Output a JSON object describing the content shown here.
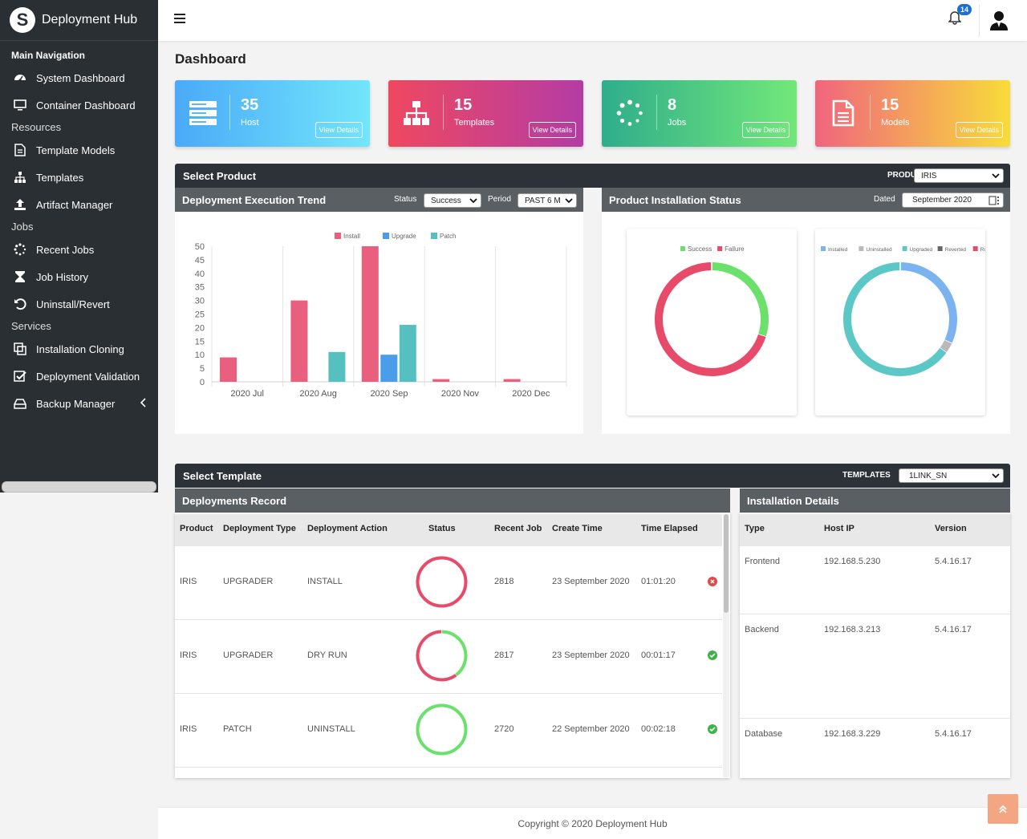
{
  "brand": {
    "title": "Deployment Hub"
  },
  "sidebar": {
    "main_label": "Main Navigation",
    "items_main": [
      {
        "label": "System Dashboard",
        "icon": "tachometer-icon"
      },
      {
        "label": "Container Dashboard",
        "icon": "monitor-icon"
      }
    ],
    "resources_label": "Resources",
    "items_resources": [
      {
        "label": "Template Models",
        "icon": "document-icon"
      },
      {
        "label": "Templates",
        "icon": "sitemap-icon"
      },
      {
        "label": "Artifact Manager",
        "icon": "upload-icon"
      }
    ],
    "jobs_label": "Jobs",
    "items_jobs": [
      {
        "label": "Recent Jobs",
        "icon": "spinner-icon"
      },
      {
        "label": "Job History",
        "icon": "hourglass-icon"
      },
      {
        "label": "Uninstall/Revert",
        "icon": "undo-icon"
      }
    ],
    "services_label": "Services",
    "items_services": [
      {
        "label": "Installation Cloning",
        "icon": "clone-icon"
      },
      {
        "label": "Deployment Validation",
        "icon": "check-square-icon"
      },
      {
        "label": "Backup Manager",
        "icon": "hdd-icon"
      }
    ]
  },
  "topbar": {
    "notification_count": "14"
  },
  "page": {
    "title": "Dashboard"
  },
  "cards": [
    {
      "value": "35",
      "label": "Host",
      "button": "View Details",
      "icon": "server-icon"
    },
    {
      "value": "15",
      "label": "Templates",
      "button": "View Details",
      "icon": "sitemap-icon"
    },
    {
      "value": "8",
      "label": "Jobs",
      "button": "View Details",
      "icon": "spinner-icon"
    },
    {
      "value": "15",
      "label": "Models",
      "button": "View Details",
      "icon": "document-icon"
    }
  ],
  "product_panel": {
    "title": "Select Product",
    "product_label": "PRODUCT",
    "product_value": "IRIS",
    "trend": {
      "title": "Deployment Execution Trend",
      "status_label": "Status",
      "status_value": "Success",
      "period_label": "Period",
      "period_value": "PAST 6 M"
    },
    "install_status": {
      "title": "Product Installation Status",
      "dated_label": "Dated",
      "dated_value": "September 2020"
    }
  },
  "chart_data": [
    {
      "type": "bar",
      "categories": [
        "2020 Jul",
        "2020 Aug",
        "2020 Sep",
        "2020 Nov",
        "2020 Dec"
      ],
      "series": [
        {
          "name": "Install",
          "color": "#e9607e",
          "values": [
            9,
            30,
            50,
            1,
            1
          ]
        },
        {
          "name": "Upgrade",
          "color": "#4a9de8",
          "values": [
            0,
            0,
            10,
            0,
            0
          ]
        },
        {
          "name": "Patch",
          "color": "#56c0c0",
          "values": [
            0,
            11,
            21,
            0,
            0
          ]
        }
      ],
      "yticks": [
        "0",
        "5",
        "10",
        "15",
        "20",
        "25",
        "30",
        "35",
        "40",
        "45",
        "50"
      ],
      "ylim": [
        0,
        50
      ],
      "legend": "top"
    },
    {
      "type": "pie",
      "labels": [
        "Success",
        "Failure"
      ],
      "values": [
        30,
        70
      ],
      "colors": [
        "#6be06b",
        "#e84a6a"
      ]
    },
    {
      "type": "pie",
      "labels": [
        "Installed",
        "Uninstalled",
        "Upgraded",
        "Reverted",
        "Rollback"
      ],
      "values": [
        32,
        3,
        65,
        0,
        0
      ],
      "colors": [
        "#7ab3ef",
        "#b9b9b9",
        "#5cc7c7",
        "#666666",
        "#e84a6a"
      ]
    }
  ],
  "template_panel": {
    "title": "Select Template",
    "templates_label": "TEMPLATES",
    "templates_value": "1LINK_SN"
  },
  "records": {
    "title": "Deployments Record",
    "columns": [
      "Product",
      "Deployment Type",
      "Deployment Action",
      "Status",
      "Recent Job",
      "Create Time",
      "Time Elapsed"
    ],
    "rows": [
      {
        "product": "IRIS",
        "type": "UPGRADER",
        "action": "INSTALL",
        "status_success": 0,
        "job": "2818",
        "created": "23 September 2020",
        "elapsed": "01:01:20",
        "result": "x-circle-icon"
      },
      {
        "product": "IRIS",
        "type": "UPGRADER",
        "action": "DRY RUN",
        "status_success": 0.4,
        "job": "2817",
        "created": "23 September 2020",
        "elapsed": "00:01:17",
        "result": "check-circle-icon"
      },
      {
        "product": "IRIS",
        "type": "PATCH",
        "action": "UNINSTALL",
        "status_success": 1,
        "job": "2720",
        "created": "22 September 2020",
        "elapsed": "00:02:18",
        "result": "check-circle-icon"
      }
    ]
  },
  "installation": {
    "title": "Installation Details",
    "columns": [
      "Type",
      "Host IP",
      "Version"
    ],
    "rows": [
      {
        "type": "Frontend",
        "ip": "192.168.5.230",
        "version": "5.4.16.17"
      },
      {
        "type": "Backend",
        "ip": "192.168.3.213",
        "version": "5.4.16.17"
      },
      {
        "type": "Database",
        "ip": "192.168.3.229",
        "version": "5.4.16.17"
      }
    ]
  },
  "footer": {
    "copyright": "Copyright © 2020 Deployment Hub"
  }
}
